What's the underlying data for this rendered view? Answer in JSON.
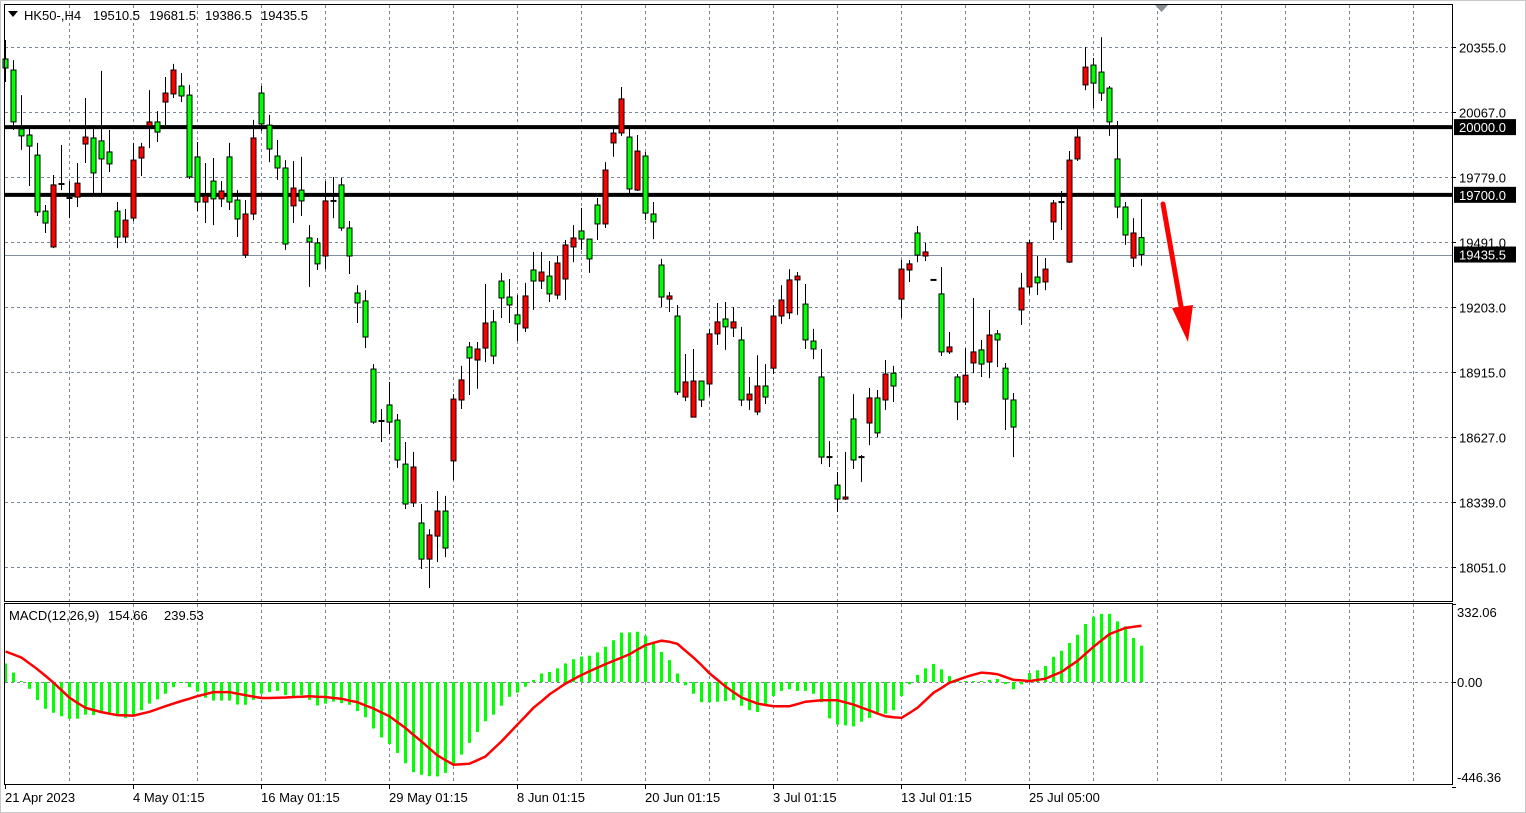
{
  "header": {
    "symbol": "HK50-,H4",
    "open": "19510.5",
    "high": "19681.5",
    "low": "19386.5",
    "close": "19435.5"
  },
  "indicator": {
    "label": "MACD(12,26,9)",
    "main_value": "154.66",
    "signal_value": "239.53"
  },
  "colors": {
    "bull_candle": "#ff0000",
    "bear_candle": "#00ff00",
    "histogram": "#00ff00",
    "signal_line": "#ff0000",
    "grid": "#7a8796",
    "level_line": "#000000",
    "arrow": "#ff0000"
  },
  "chart_data": [
    {
      "type": "candlestick",
      "title": "HK50-,H4",
      "ylim": [
        17958,
        20399
      ],
      "y_ticks": [
        "20355.0",
        "20067.0",
        "19779.0",
        "19491.0",
        "19203.0",
        "18915.0",
        "18627.0",
        "18339.0",
        "18051.0"
      ],
      "y_tick_values": [
        20355,
        20067,
        19779,
        19491,
        19203,
        18915,
        18627,
        18339,
        18051
      ],
      "x_tick_labels": [
        "21 Apr 2023",
        "4 May 01:15",
        "16 May 01:15",
        "29 May 01:15",
        "8 Jun 01:15",
        "20 Jun 01:15",
        "3 Jul 01:15",
        "13 Jul 01:15",
        "25 Jul 05:00"
      ],
      "grid": true,
      "horizontal_levels": [
        {
          "value": 20000,
          "label": "20000.0"
        },
        {
          "value": 19700,
          "label": "19700.0"
        }
      ],
      "bid_line": {
        "value": 19435.5,
        "label": "19435.5"
      },
      "annotation": "red downward arrow after last candle",
      "ohlc": [
        [
          20302,
          20386,
          20200,
          20262
        ],
        [
          20253,
          20297,
          19987,
          20023
        ],
        [
          19992,
          20142,
          19899,
          19961
        ],
        [
          19965,
          19996,
          19739,
          19916
        ],
        [
          19876,
          19930,
          19606,
          19624
        ],
        [
          19628,
          19655,
          19531,
          19575
        ],
        [
          19469,
          19788,
          19464,
          19744
        ],
        [
          19748,
          19921,
          19721,
          19748
        ],
        [
          19686,
          19761,
          19597,
          19686
        ],
        [
          19690,
          19841,
          19646,
          19752
        ],
        [
          19925,
          20129,
          19841,
          19956
        ],
        [
          19952,
          20009,
          19708,
          19797
        ],
        [
          19939,
          20249,
          19708,
          19859
        ],
        [
          19890,
          19987,
          19801,
          19837
        ],
        [
          19628,
          19668,
          19464,
          19513
        ],
        [
          19513,
          19637,
          19487,
          19588
        ],
        [
          19597,
          19930,
          19584,
          19854
        ],
        [
          19863,
          19930,
          19783,
          19912
        ],
        [
          20005,
          20164,
          19907,
          20023
        ],
        [
          20023,
          20071,
          19934,
          19978
        ],
        [
          20111,
          20222,
          20009,
          20151
        ],
        [
          20147,
          20280,
          20129,
          20253
        ],
        [
          20182,
          20240,
          20111,
          20138
        ],
        [
          20142,
          20187,
          19770,
          19779
        ],
        [
          19868,
          19934,
          19628,
          19668
        ],
        [
          19668,
          19841,
          19575,
          19695
        ],
        [
          19761,
          19863,
          19566,
          19682
        ],
        [
          19682,
          19761,
          19646,
          19717
        ],
        [
          19868,
          19930,
          19633,
          19668
        ],
        [
          19677,
          19721,
          19513,
          19593
        ],
        [
          19433,
          19677,
          19420,
          19615
        ],
        [
          19615,
          20032,
          19588,
          19952
        ],
        [
          20151,
          20182,
          19983,
          20014
        ],
        [
          20009,
          20054,
          19845,
          19903
        ],
        [
          19872,
          19943,
          19766,
          19819
        ],
        [
          19819,
          19854,
          19456,
          19482
        ],
        [
          19651,
          19850,
          19575,
          19730
        ],
        [
          19721,
          19868,
          19606,
          19673
        ],
        [
          19509,
          19566,
          19292,
          19491
        ],
        [
          19487,
          19509,
          19367,
          19394
        ],
        [
          19429,
          19761,
          19371,
          19673
        ],
        [
          19673,
          19779,
          19597,
          19673
        ],
        [
          19744,
          19775,
          19540,
          19553
        ],
        [
          19553,
          19584,
          19349,
          19429
        ],
        [
          19265,
          19300,
          19132,
          19221
        ],
        [
          19230,
          19278,
          19021,
          19070
        ],
        [
          18928,
          18950,
          18685,
          18693
        ],
        [
          18698,
          18751,
          18605,
          18698
        ],
        [
          18769,
          18871,
          18640,
          18693
        ],
        [
          18702,
          18729,
          18490,
          18525
        ],
        [
          18507,
          18605,
          18308,
          18330
        ],
        [
          18335,
          18561,
          18317,
          18494
        ],
        [
          18246,
          18330,
          18042,
          18086
        ],
        [
          18086,
          18219,
          17958,
          18193
        ],
        [
          18188,
          18388,
          18073,
          18299
        ],
        [
          18299,
          18366,
          18095,
          18135
        ],
        [
          18521,
          18817,
          18436,
          18795
        ],
        [
          18791,
          18942,
          18751,
          18880
        ],
        [
          19026,
          19048,
          18813,
          18977
        ],
        [
          18968,
          19048,
          18840,
          19017
        ],
        [
          19021,
          19305,
          18959,
          19132
        ],
        [
          19137,
          19190,
          18950,
          18986
        ],
        [
          19318,
          19354,
          19154,
          19243
        ],
        [
          19247,
          19327,
          19132,
          19212
        ],
        [
          19168,
          19256,
          19052,
          19128
        ],
        [
          19110,
          19310,
          19092,
          19252
        ],
        [
          19367,
          19447,
          19190,
          19318
        ],
        [
          19318,
          19447,
          19283,
          19358
        ],
        [
          19340,
          19407,
          19225,
          19261
        ],
        [
          19256,
          19429,
          19238,
          19398
        ],
        [
          19327,
          19500,
          19234,
          19478
        ],
        [
          19469,
          19566,
          19402,
          19509
        ],
        [
          19540,
          19642,
          19456,
          19504
        ],
        [
          19504,
          19504,
          19354,
          19416
        ],
        [
          19655,
          19686,
          19500,
          19571
        ],
        [
          19571,
          19845,
          19553,
          19810
        ],
        [
          19930,
          20009,
          19868,
          19974
        ],
        [
          19974,
          20178,
          19961,
          20125
        ],
        [
          19956,
          20005,
          19704,
          19726
        ],
        [
          19721,
          19965,
          19717,
          19894
        ],
        [
          19872,
          19890,
          19588,
          19619
        ],
        [
          19615,
          19668,
          19504,
          19580
        ],
        [
          19389,
          19416,
          19203,
          19247
        ],
        [
          19238,
          19270,
          19181,
          19252
        ],
        [
          19163,
          19212,
          18813,
          18826
        ],
        [
          18804,
          18995,
          18786,
          18871
        ],
        [
          18715,
          19017,
          18715,
          18875
        ],
        [
          18875,
          18875,
          18760,
          18791
        ],
        [
          18862,
          19106,
          18809,
          19084
        ],
        [
          19084,
          19221,
          19035,
          19137
        ],
        [
          19150,
          19225,
          19013,
          19115
        ],
        [
          19110,
          19203,
          19070,
          19137
        ],
        [
          19057,
          19115,
          18764,
          18791
        ],
        [
          18791,
          18893,
          18747,
          18817
        ],
        [
          18738,
          18990,
          18724,
          18853
        ],
        [
          18853,
          18950,
          18773,
          18804
        ],
        [
          18932,
          19212,
          18906,
          19163
        ],
        [
          19163,
          19300,
          19128,
          19234
        ],
        [
          19177,
          19371,
          19150,
          19323
        ],
        [
          19323,
          19358,
          19168,
          19340
        ],
        [
          19216,
          19305,
          19017,
          19057
        ],
        [
          19052,
          19106,
          18972,
          19017
        ],
        [
          18893,
          19017,
          18507,
          18538
        ],
        [
          18538,
          18609,
          18494,
          18538
        ],
        [
          18414,
          18472,
          18295,
          18352
        ],
        [
          18352,
          18561,
          18348,
          18361
        ],
        [
          18707,
          18817,
          18485,
          18525
        ],
        [
          18538,
          18547,
          18428,
          18538
        ],
        [
          18689,
          18844,
          18591,
          18800
        ],
        [
          18800,
          18835,
          18627,
          18645
        ],
        [
          18791,
          18968,
          18747,
          18906
        ],
        [
          18910,
          18942,
          18782,
          18853
        ],
        [
          19238,
          19411,
          19154,
          19371
        ],
        [
          19367,
          19411,
          19314,
          19394
        ],
        [
          19531,
          19562,
          19402,
          19433
        ],
        [
          19429,
          19487,
          19407,
          19447
        ],
        [
          19323,
          19323,
          19323,
          19323
        ],
        [
          19261,
          19380,
          18986,
          19004
        ],
        [
          19004,
          19092,
          18995,
          19026
        ],
        [
          18893,
          18906,
          18702,
          18782
        ],
        [
          18782,
          19021,
          18769,
          18901
        ],
        [
          18955,
          19243,
          18910,
          19004
        ],
        [
          19013,
          19057,
          18893,
          18950
        ],
        [
          18959,
          19190,
          18888,
          19079
        ],
        [
          19084,
          19101,
          18937,
          19057
        ],
        [
          18932,
          18955,
          18658,
          18795
        ],
        [
          18791,
          18822,
          18538,
          18671
        ],
        [
          19190,
          19354,
          19123,
          19287
        ],
        [
          19292,
          19500,
          19261,
          19487
        ],
        [
          19336,
          19429,
          19256,
          19310
        ],
        [
          19314,
          19420,
          19278,
          19371
        ],
        [
          19580,
          19677,
          19500,
          19664
        ],
        [
          19668,
          19717,
          19544,
          19668
        ],
        [
          19402,
          19894,
          19398,
          19854
        ],
        [
          19859,
          20000,
          19850,
          19956
        ],
        [
          20187,
          20355,
          20164,
          20266
        ],
        [
          20275,
          20306,
          20085,
          20195
        ],
        [
          20244,
          20399,
          20116,
          20151
        ],
        [
          20173,
          20182,
          19961,
          20023
        ],
        [
          19859,
          20027,
          19597,
          19646
        ],
        [
          19646,
          19668,
          19478,
          19522
        ],
        [
          19420,
          19597,
          19380,
          19531
        ],
        [
          19510.5,
          19681.5,
          19386.5,
          19435.5
        ]
      ]
    },
    {
      "type": "bar+line",
      "title": "MACD(12,26,9)",
      "ylim": [
        -446.36,
        332.06
      ],
      "y_ticks": [
        "332.06",
        "0.00",
        "-446.36"
      ],
      "y_tick_values": [
        332.06,
        0,
        -446.36
      ],
      "series": [
        {
          "name": "MACD",
          "type": "bar",
          "values": [
            79,
            40,
            4,
            -29,
            -77,
            -114,
            -131,
            -146,
            -157,
            -156,
            -139,
            -141,
            -131,
            -133,
            -146,
            -153,
            -146,
            -120,
            -92,
            -74,
            -50,
            -22,
            -4,
            -22,
            -41,
            -67,
            -79,
            -79,
            -79,
            -96,
            -97,
            -76,
            -50,
            -43,
            -38,
            -56,
            -68,
            -56,
            -76,
            -100,
            -92,
            -83,
            -90,
            -97,
            -124,
            -150,
            -198,
            -236,
            -264,
            -302,
            -346,
            -384,
            -395,
            -401,
            -402,
            -387,
            -349,
            -309,
            -259,
            -213,
            -167,
            -139,
            -101,
            -63,
            -45,
            -20,
            9,
            36,
            43,
            58,
            79,
            97,
            108,
            112,
            126,
            150,
            178,
            210,
            211,
            214,
            197,
            170,
            128,
            93,
            36,
            -14,
            -50,
            -86,
            -86,
            -84,
            -81,
            -77,
            -101,
            -120,
            -128,
            -96,
            -60,
            -38,
            -31,
            -38,
            -38,
            -50,
            -86,
            -155,
            -181,
            -185,
            -189,
            -169,
            -153,
            -139,
            -135,
            -120,
            -60,
            -10,
            30,
            58,
            77,
            54,
            25,
            9,
            4,
            4,
            4,
            9,
            13,
            -9,
            -31,
            -10,
            38,
            50,
            68,
            107,
            133,
            166,
            201,
            247,
            278,
            290,
            290,
            258,
            237,
            187,
            154.66
          ]
        },
        {
          "name": "Signal",
          "type": "line",
          "values": [
            130,
            117,
            104,
            79,
            54,
            26,
            -3,
            -35,
            -67,
            -89,
            -110,
            -119,
            -128,
            -135,
            -141,
            -142,
            -143,
            -135,
            -127,
            -115,
            -103,
            -92,
            -81,
            -71,
            -60,
            -52,
            -43,
            -43,
            -43,
            -50,
            -56,
            -62,
            -68,
            -68,
            -67,
            -66,
            -64,
            -63,
            -61,
            -63,
            -64,
            -68,
            -71,
            -79,
            -86,
            -100,
            -113,
            -130,
            -146,
            -171,
            -196,
            -225,
            -253,
            -283,
            -313,
            -333,
            -352,
            -350,
            -348,
            -333,
            -317,
            -285,
            -253,
            -217,
            -181,
            -146,
            -110,
            -82,
            -53,
            -30,
            -7,
            12,
            30,
            46,
            61,
            76,
            90,
            104,
            118,
            138,
            157,
            167,
            176,
            171,
            162,
            133,
            104,
            72,
            37,
            9,
            -19,
            -43,
            -66,
            -79,
            -92,
            -98,
            -103,
            -103,
            -103,
            -94,
            -84,
            -81,
            -78,
            -78,
            -78,
            -87,
            -96,
            -109,
            -121,
            -134,
            -146,
            -150,
            -153,
            -132,
            -110,
            -78,
            -46,
            -25,
            -3,
            9,
            21,
            31,
            40,
            37,
            33,
            21,
            9,
            7,
            4,
            9,
            14,
            29,
            43,
            67,
            90,
            120,
            150,
            177,
            204,
            217,
            230,
            235,
            239.53
          ]
        }
      ]
    }
  ]
}
